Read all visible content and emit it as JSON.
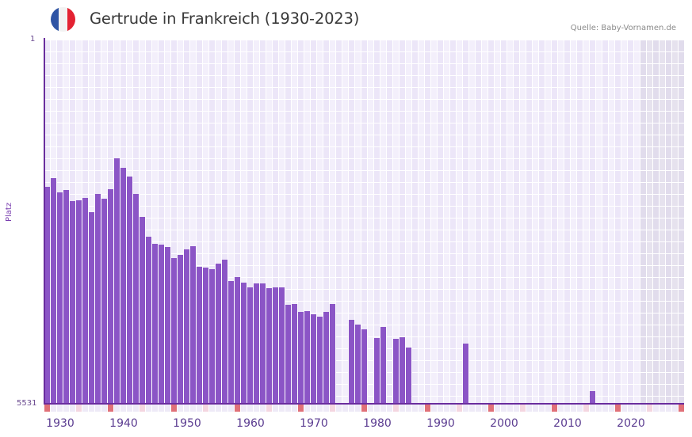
{
  "header": {
    "title": "Gertrude in Frankreich (1930-2023)",
    "source": "Quelle: Baby-Vornamen.de",
    "flag_colors": [
      "#2f54a4",
      "#f2f2f2",
      "#e32232"
    ]
  },
  "colors": {
    "bar": "#8b55c6",
    "axis": "#6a2d9e",
    "grid_light": "#f3effb",
    "grid_alt": "#ece6f8",
    "future_shade": "#e1dcec",
    "decade_marker": "#e07078",
    "half_decade_marker": "#f4d6e0",
    "strip_bg": "#eeeaf7"
  },
  "chart_data": {
    "type": "bar",
    "title": "Gertrude in Frankreich (1930-2023)",
    "xlabel": "",
    "ylabel": "Platz",
    "y_inverted": true,
    "ylim": [
      1,
      5531
    ],
    "ytick_labels": [
      "1",
      "5531"
    ],
    "xtick_labels": [
      "1930",
      "1940",
      "1950",
      "1960",
      "1970",
      "1980",
      "1990",
      "2000",
      "2010",
      "2020"
    ],
    "x_range": [
      1928,
      2028
    ],
    "shaded_future_from": 2022,
    "grid": true,
    "legend": null,
    "categories": [
      1928,
      1929,
      1930,
      1931,
      1932,
      1933,
      1934,
      1935,
      1936,
      1937,
      1938,
      1939,
      1940,
      1941,
      1942,
      1943,
      1944,
      1945,
      1946,
      1947,
      1948,
      1949,
      1950,
      1951,
      1952,
      1953,
      1954,
      1955,
      1956,
      1957,
      1958,
      1959,
      1960,
      1961,
      1962,
      1963,
      1964,
      1965,
      1966,
      1967,
      1968,
      1969,
      1970,
      1971,
      1972,
      1973,
      1976,
      1977,
      1978,
      1980,
      1981,
      1983,
      1984,
      1985,
      1994,
      2014
    ],
    "values": [
      2237,
      2104,
      2321,
      2285,
      2453,
      2441,
      2405,
      2621,
      2345,
      2417,
      2273,
      1804,
      1948,
      2080,
      2345,
      2693,
      2994,
      3102,
      3114,
      3150,
      3319,
      3270,
      3186,
      3138,
      3451,
      3463,
      3487,
      3403,
      3343,
      3667,
      3607,
      3691,
      3763,
      3703,
      3703,
      3775,
      3763,
      3763,
      4028,
      4016,
      4136,
      4124,
      4172,
      4208,
      4136,
      4016,
      4256,
      4328,
      4400,
      4532,
      4364,
      4544,
      4520,
      4677,
      4617,
      5339
    ]
  }
}
